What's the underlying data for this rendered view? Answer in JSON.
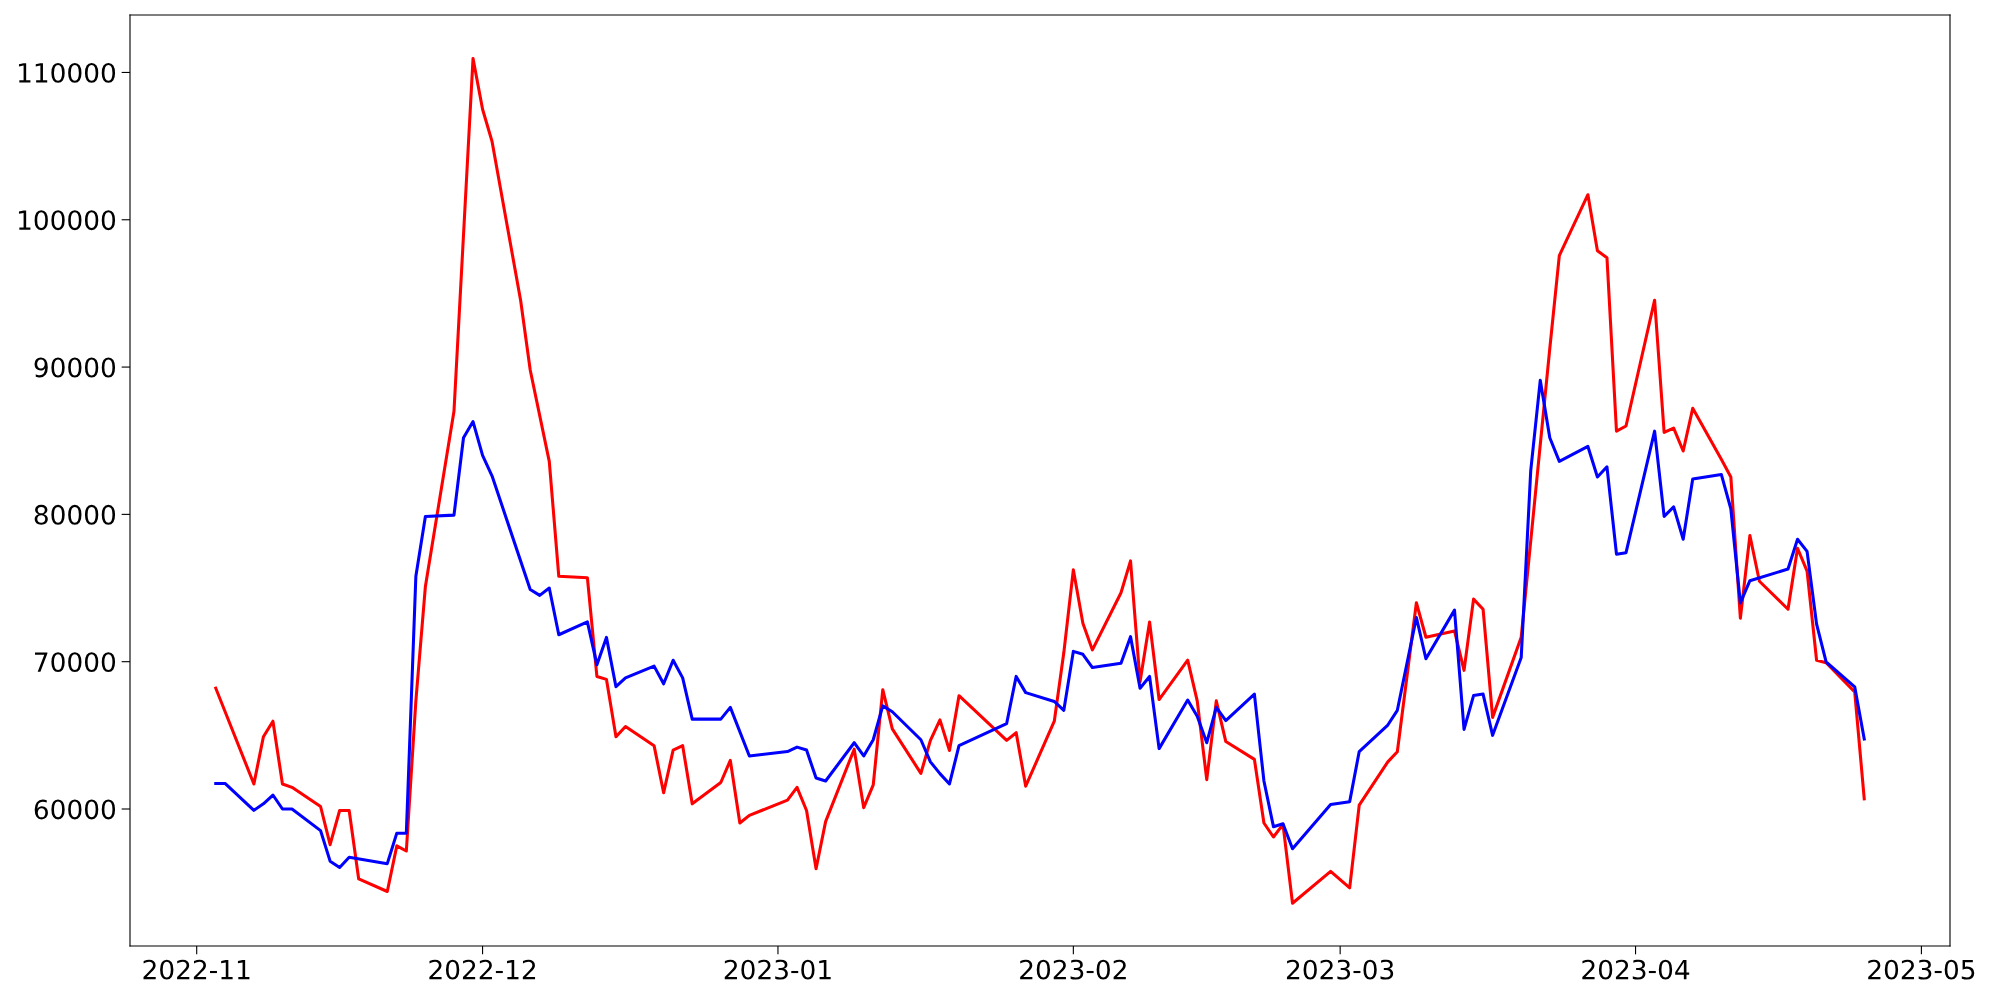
{
  "chart_data": {
    "type": "line",
    "xlim": [
      "2022-10-25",
      "2023-05-04"
    ],
    "ylim": [
      50700,
      113900
    ],
    "xticks": [
      {
        "value": "2022-11-01",
        "label": "2022-11"
      },
      {
        "value": "2022-12-01",
        "label": "2022-12"
      },
      {
        "value": "2023-01-01",
        "label": "2023-01"
      },
      {
        "value": "2023-02-01",
        "label": "2023-02"
      },
      {
        "value": "2023-03-01",
        "label": "2023-03"
      },
      {
        "value": "2023-04-01",
        "label": "2023-04"
      },
      {
        "value": "2023-05-01",
        "label": "2023-05"
      }
    ],
    "yticks": [
      60000,
      70000,
      80000,
      90000,
      100000,
      110000
    ],
    "grid": false,
    "legend": false,
    "marker": "none",
    "line_style": "solid",
    "series": [
      {
        "color": "#ff0000",
        "x": [
          "2022-11-03",
          "2022-11-07",
          "2022-11-08",
          "2022-11-09",
          "2022-11-10",
          "2022-11-11",
          "2022-11-14",
          "2022-11-15",
          "2022-11-16",
          "2022-11-17",
          "2022-11-18",
          "2022-11-21",
          "2022-11-22",
          "2022-11-23",
          "2022-11-24",
          "2022-11-25",
          "2022-11-28",
          "2022-11-30",
          "2022-12-01",
          "2022-12-02",
          "2022-12-05",
          "2022-12-06",
          "2022-12-08",
          "2022-12-09",
          "2022-12-12",
          "2022-12-13",
          "2022-12-14",
          "2022-12-15",
          "2022-12-16",
          "2022-12-19",
          "2022-12-20",
          "2022-12-21",
          "2022-12-22",
          "2022-12-23",
          "2022-12-26",
          "2022-12-27",
          "2022-12-28",
          "2022-12-29",
          "2023-01-02",
          "2023-01-03",
          "2023-01-04",
          "2023-01-05",
          "2023-01-06",
          "2023-01-09",
          "2023-01-10",
          "2023-01-11",
          "2023-01-12",
          "2023-01-13",
          "2023-01-16",
          "2023-01-17",
          "2023-01-18",
          "2023-01-19",
          "2023-01-20",
          "2023-01-25",
          "2023-01-26",
          "2023-01-27",
          "2023-01-30",
          "2023-01-31",
          "2023-02-01",
          "2023-02-02",
          "2023-02-03",
          "2023-02-06",
          "2023-02-07",
          "2023-02-08",
          "2023-02-09",
          "2023-02-10",
          "2023-02-13",
          "2023-02-14",
          "2023-02-15",
          "2023-02-16",
          "2023-02-17",
          "2023-02-20",
          "2023-02-21",
          "2023-02-22",
          "2023-02-23",
          "2023-02-24",
          "2023-02-28",
          "2023-03-02",
          "2023-03-03",
          "2023-03-06",
          "2023-03-07",
          "2023-03-09",
          "2023-03-10",
          "2023-03-13",
          "2023-03-14",
          "2023-03-15",
          "2023-03-16",
          "2023-03-17",
          "2023-03-20",
          "2023-03-23",
          "2023-03-24",
          "2023-03-27",
          "2023-03-28",
          "2023-03-29",
          "2023-03-30",
          "2023-03-31",
          "2023-04-03",
          "2023-04-04",
          "2023-04-05",
          "2023-04-06",
          "2023-04-07",
          "2023-04-10",
          "2023-04-11",
          "2023-04-12",
          "2023-04-13",
          "2023-04-14",
          "2023-04-17",
          "2023-04-18",
          "2023-04-19",
          "2023-04-20",
          "2023-04-21",
          "2023-04-24",
          "2023-04-25"
        ],
        "values": [
          68200,
          61700,
          64900,
          65960,
          61700,
          61470,
          60170,
          57580,
          59900,
          59900,
          55250,
          54400,
          57500,
          57150,
          67340,
          75110,
          87000,
          110950,
          107500,
          105300,
          94500,
          89800,
          83600,
          75800,
          75700,
          69000,
          68800,
          64900,
          65600,
          64300,
          61100,
          64000,
          64300,
          60350,
          61800,
          63300,
          59050,
          59570,
          60600,
          61470,
          59900,
          55940,
          59140,
          64060,
          60090,
          61640,
          68100,
          65440,
          62420,
          64660,
          66050,
          63970,
          67690,
          64660,
          65180,
          61550,
          65960,
          70620,
          76240,
          72610,
          70800,
          74680,
          76840,
          68640,
          72700,
          67430,
          70100,
          67340,
          61990,
          67340,
          64580,
          63370,
          59050,
          58100,
          58960,
          53600,
          55770,
          54650,
          60260,
          63200,
          63890,
          74000,
          71660,
          72090,
          69410,
          74250,
          73560,
          66220,
          71660,
          91260,
          97570,
          101700,
          97900,
          97420,
          85650,
          86000,
          94540,
          85560,
          85860,
          84300,
          87200,
          83750,
          82540,
          72950,
          78570,
          75460,
          73560,
          77700,
          76150,
          70100,
          69930,
          67950,
          60690
        ]
      },
      {
        "color": "#0000ff",
        "x": [
          "2022-11-03",
          "2022-11-04",
          "2022-11-07",
          "2022-11-08",
          "2022-11-09",
          "2022-11-10",
          "2022-11-11",
          "2022-11-14",
          "2022-11-15",
          "2022-11-16",
          "2022-11-17",
          "2022-11-21",
          "2022-11-22",
          "2022-11-23",
          "2022-11-24",
          "2022-11-25",
          "2022-11-28",
          "2022-11-29",
          "2022-11-30",
          "2022-12-01",
          "2022-12-02",
          "2022-12-06",
          "2022-12-07",
          "2022-12-08",
          "2022-12-09",
          "2022-12-12",
          "2022-12-13",
          "2022-12-14",
          "2022-12-15",
          "2022-12-16",
          "2022-12-19",
          "2022-12-20",
          "2022-12-21",
          "2022-12-22",
          "2022-12-23",
          "2022-12-26",
          "2022-12-27",
          "2022-12-29",
          "2023-01-02",
          "2023-01-03",
          "2023-01-04",
          "2023-01-05",
          "2023-01-06",
          "2023-01-09",
          "2023-01-10",
          "2023-01-11",
          "2023-01-12",
          "2023-01-13",
          "2023-01-16",
          "2023-01-17",
          "2023-01-18",
          "2023-01-19",
          "2023-01-20",
          "2023-01-25",
          "2023-01-26",
          "2023-01-27",
          "2023-01-30",
          "2023-01-31",
          "2023-02-01",
          "2023-02-02",
          "2023-02-03",
          "2023-02-06",
          "2023-02-07",
          "2023-02-08",
          "2023-02-09",
          "2023-02-10",
          "2023-02-13",
          "2023-02-14",
          "2023-02-15",
          "2023-02-16",
          "2023-02-17",
          "2023-02-20",
          "2023-02-21",
          "2023-02-22",
          "2023-02-23",
          "2023-02-24",
          "2023-02-28",
          "2023-03-02",
          "2023-03-03",
          "2023-03-06",
          "2023-03-07",
          "2023-03-09",
          "2023-03-10",
          "2023-03-13",
          "2023-03-14",
          "2023-03-15",
          "2023-03-16",
          "2023-03-17",
          "2023-03-20",
          "2023-03-21",
          "2023-03-22",
          "2023-03-23",
          "2023-03-24",
          "2023-03-27",
          "2023-03-28",
          "2023-03-29",
          "2023-03-30",
          "2023-03-31",
          "2023-04-03",
          "2023-04-04",
          "2023-04-05",
          "2023-04-06",
          "2023-04-07",
          "2023-04-10",
          "2023-04-11",
          "2023-04-12",
          "2023-04-13",
          "2023-04-17",
          "2023-04-18",
          "2023-04-19",
          "2023-04-20",
          "2023-04-21",
          "2023-04-24",
          "2023-04-25"
        ],
        "values": [
          61730,
          61730,
          59910,
          60350,
          60950,
          60000,
          60000,
          58530,
          56460,
          56030,
          56720,
          56290,
          58360,
          58360,
          75800,
          79860,
          79950,
          85200,
          86300,
          84000,
          82600,
          74900,
          74500,
          75000,
          71830,
          72700,
          69800,
          71650,
          68300,
          68900,
          69700,
          68500,
          70100,
          68900,
          66100,
          66100,
          66900,
          63600,
          63900,
          64200,
          64000,
          62100,
          61900,
          64500,
          63600,
          64700,
          67000,
          66600,
          64700,
          63200,
          62400,
          61700,
          64300,
          65800,
          69000,
          67900,
          67300,
          66700,
          70700,
          70500,
          69600,
          69900,
          71700,
          68200,
          69000,
          64100,
          67400,
          66300,
          64500,
          66900,
          66000,
          67800,
          61900,
          58800,
          59000,
          57300,
          60300,
          60500,
          63900,
          65700,
          66700,
          73000,
          70200,
          73500,
          65400,
          67700,
          67800,
          65000,
          70280,
          82970,
          89100,
          85200,
          83600,
          84610,
          82540,
          83230,
          77300,
          77400,
          85650,
          79860,
          80510,
          78310,
          82400,
          82710,
          80380,
          73990,
          75500,
          76290,
          78310,
          77490,
          72550,
          69980,
          68290,
          64750
        ]
      }
    ]
  }
}
